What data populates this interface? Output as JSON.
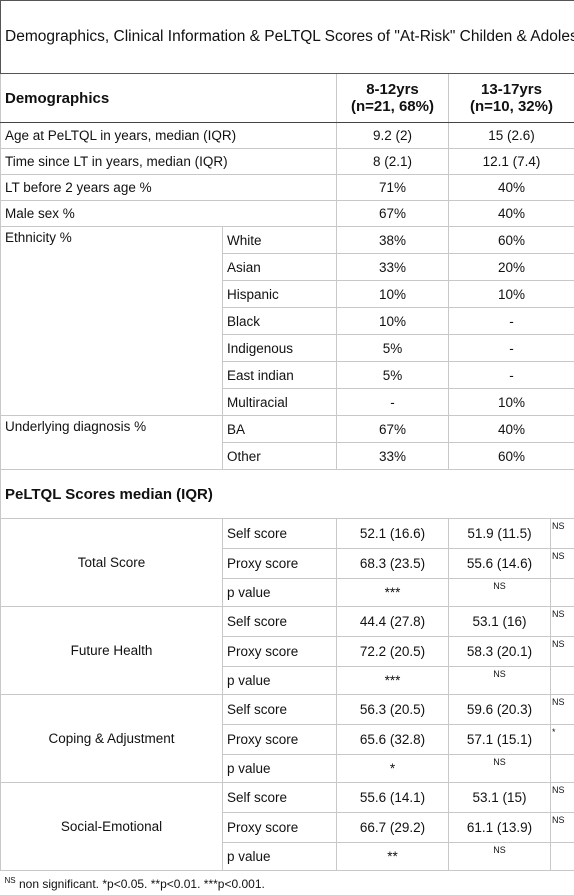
{
  "title": "Demographics, Clinical Information & PeLTQL Scores of \"At-Risk\" Childen & Adolescents",
  "header": {
    "label": "Demographics",
    "groups": [
      {
        "name": "8-12yrs",
        "n": "(n=21, 68%)"
      },
      {
        "name": "13-17yrs",
        "n": "(n=10, 32%)"
      }
    ]
  },
  "rows": [
    {
      "label": "Age at PeLTQL in years, median (IQR)",
      "values": [
        "9.2 (2)",
        "15 (2.6)"
      ]
    },
    {
      "label": "Time since LT in years, median (IQR)",
      "values": [
        "8 (2.1)",
        "12.1 (7.4)"
      ]
    },
    {
      "label": "LT before 2 years age %",
      "values": [
        "71%",
        "40%"
      ]
    },
    {
      "label": "Male sex %",
      "values": [
        "67%",
        "40%"
      ]
    }
  ],
  "groups": [
    {
      "label": "Ethnicity %",
      "rows": [
        {
          "label": "White",
          "values": [
            "38%",
            "60%"
          ]
        },
        {
          "label": "Asian",
          "values": [
            "33%",
            "20%"
          ]
        },
        {
          "label": "Hispanic",
          "values": [
            "10%",
            "10%"
          ]
        },
        {
          "label": "Black",
          "values": [
            "10%",
            "-"
          ]
        },
        {
          "label": "Indigenous",
          "values": [
            "5%",
            "-"
          ]
        },
        {
          "label": "East indian",
          "values": [
            "5%",
            "-"
          ]
        },
        {
          "label": "Multiracial",
          "values": [
            "-",
            "10%"
          ]
        }
      ]
    },
    {
      "label": "Underlying diagnosis %",
      "rows": [
        {
          "label": "BA",
          "values": [
            "67%",
            "40%"
          ]
        },
        {
          "label": "Other",
          "values": [
            "33%",
            "60%"
          ]
        }
      ]
    }
  ],
  "scores": {
    "heading": "PeLTQL Scores median (IQR)",
    "sections": [
      {
        "label": "Total Score",
        "rows": [
          {
            "label": "Self score",
            "values": [
              "52.1 (16.6)",
              "51.9 (11.5)"
            ],
            "note": "NS"
          },
          {
            "label": "Proxy score",
            "values": [
              "68.3 (23.5)",
              "55.6 (14.6)"
            ],
            "note": "NS"
          },
          {
            "label": "p value",
            "values": [
              "***",
              "NS"
            ]
          }
        ]
      },
      {
        "label": "Future Health",
        "rows": [
          {
            "label": "Self score",
            "values": [
              "44.4 (27.8)",
              "53.1 (16)"
            ],
            "note": "NS"
          },
          {
            "label": "Proxy score",
            "values": [
              "72.2 (20.5)",
              "58.3 (20.1)"
            ],
            "note": "NS"
          },
          {
            "label": "p value",
            "values": [
              "***",
              "NS"
            ]
          }
        ]
      },
      {
        "label": "Coping & Adjustment",
        "rows": [
          {
            "label": "Self score",
            "values": [
              "56.3 (20.5)",
              "59.6 (20.3)"
            ],
            "note": "NS"
          },
          {
            "label": "Proxy score",
            "values": [
              "65.6 (32.8)",
              "57.1 (15.1)"
            ],
            "note": "*"
          },
          {
            "label": "p value",
            "values": [
              "*",
              "NS"
            ]
          }
        ]
      },
      {
        "label": "Social-Emotional",
        "rows": [
          {
            "label": "Self score",
            "values": [
              "55.6 (14.1)",
              "53.1 (15)"
            ],
            "note": "NS"
          },
          {
            "label": "Proxy score",
            "values": [
              "66.7 (29.2)",
              "61.1 (13.9)"
            ],
            "note": "NS"
          },
          {
            "label": "p value",
            "values": [
              "**",
              "NS"
            ]
          }
        ]
      }
    ]
  },
  "footnote": {
    "mark": "NS",
    "text": "non significant. *p<0.05. **p<0.01. ***p<0.001."
  }
}
